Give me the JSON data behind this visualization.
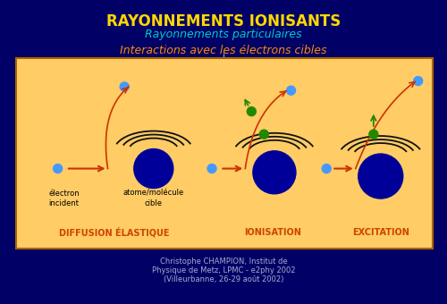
{
  "bg_color": "#000066",
  "title": "RAYONNEMENTS IONISANTS",
  "title_color": "#FFD700",
  "subtitle1": "Rayonnements particulaires",
  "subtitle1_color": "#00CCCC",
  "subtitle2": "Interactions avec les électrons cibles",
  "subtitle2_color": "#FF8C00",
  "box_bg": "#FFCC66",
  "box_border": "#AA6600",
  "label_diffusion": "DIFFUSION ÉLASTIQUE",
  "label_ionisation": "IONISATION",
  "label_excitation": "EXCITATION",
  "label_color": "#CC4400",
  "label_electron": "électron\nincident",
  "label_atome": "atome/molécule\ncible",
  "footer_line1": "Christophe CHAMPION, Institut de",
  "footer_line2": "Physique de Metz, LPMC - e2phy 2002",
  "footer_line3": "(Villeurbanne, 26-29 août 2002)",
  "footer_color": "#AAAACC",
  "atom_color": "#000099",
  "electron_color": "#4499FF",
  "arrow_color": "#CC3300",
  "green_color": "#228800"
}
